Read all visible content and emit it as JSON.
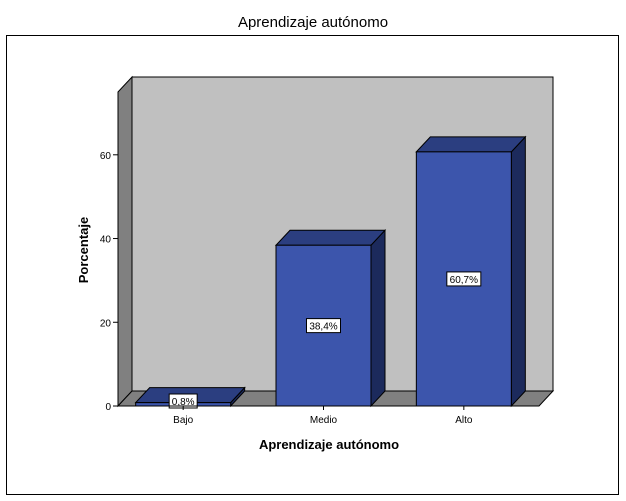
{
  "chart_data": {
    "type": "bar",
    "title": "Aprendizaje autónomo",
    "xlabel": "Aprendizaje autónomo",
    "ylabel": "Porcentaje",
    "categories": [
      "Bajo",
      "Medio",
      "Alto"
    ],
    "values": [
      0.8,
      38.4,
      60.7
    ],
    "data_labels": [
      "0,8%",
      "38,4%",
      "60,7%"
    ],
    "ylim": [
      0,
      75
    ],
    "yticks": [
      0,
      20,
      40,
      60
    ],
    "ytick_labels": [
      "0",
      "20",
      "40",
      "60"
    ],
    "grid": false,
    "legend": "none",
    "three_d": true,
    "colors": {
      "bar_front": "#3c55ac",
      "bar_top": "#2b3e80",
      "bar_side": "#1c2a5c",
      "back_wall": "#c0c0c0",
      "side_wall": "#808080",
      "floor": "#808080",
      "frame": "#000000",
      "label_box": "#ffffff"
    }
  }
}
